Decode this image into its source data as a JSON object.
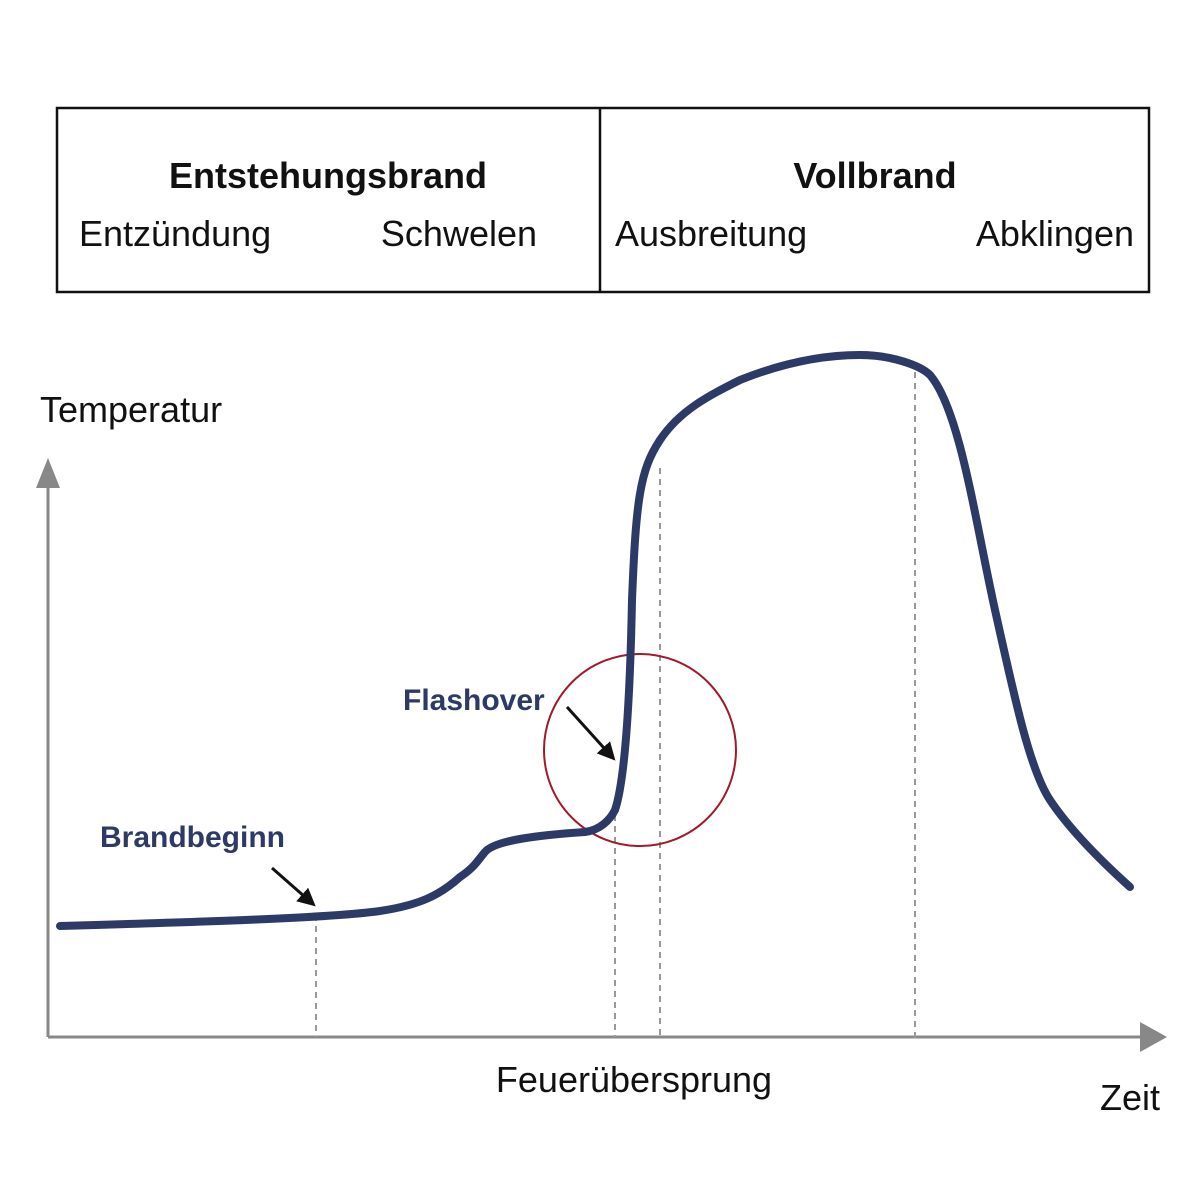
{
  "phases": [
    {
      "title": "Entstehungsbrand",
      "stages": [
        "Entzündung",
        "Schwelen"
      ]
    },
    {
      "title": "Vollbrand",
      "stages": [
        "Ausbreitung",
        "Abklingen"
      ]
    }
  ],
  "axes": {
    "y_label": "Temperatur",
    "x_label": "Zeit"
  },
  "annotations": {
    "start": "Brandbeginn",
    "flashover": "Flashover",
    "transition": "Feuerübersprung"
  }
}
